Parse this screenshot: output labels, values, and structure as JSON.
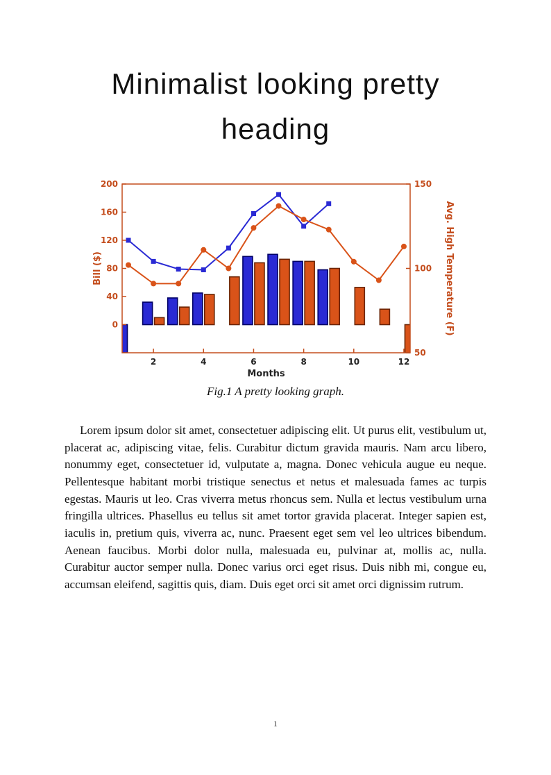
{
  "heading": {
    "title": "Minimalist looking pretty heading"
  },
  "figure": {
    "caption": "Fig.1 A pretty looking graph."
  },
  "body": {
    "paragraph": "Lorem ipsum dolor sit amet, consectetuer adipiscing elit. Ut purus elit, vestibulum ut, placerat ac, adipiscing vitae, felis. Curabitur dictum gravida mauris. Nam arcu libero, nonummy eget, consectetuer id, vulputate a, magna. Donec vehicula augue eu neque. Pellentesque habitant morbi tristique senectus et netus et malesuada fames ac turpis egestas. Mauris ut leo. Cras viverra metus rhoncus sem. Nulla et lectus vestibulum urna fringilla ultrices. Phasellus eu tellus sit amet tortor gravida placerat. Integer sapien est, iaculis in, pretium quis, viverra ac, nunc. Praesent eget sem vel leo ultrices bibendum. Aenean faucibus. Morbi dolor nulla, malesuada eu, pulvinar at, mollis ac, nulla. Curabitur auctor semper nulla. Donec varius orci eget risus. Duis nibh mi, congue eu, accumsan eleifend, sagittis quis, diam. Duis eget orci sit amet orci dignissim rutrum."
  },
  "page": {
    "number": "1"
  },
  "chart_data": {
    "type": "bar",
    "title": "",
    "xlabel": "Months",
    "x": [
      1,
      2,
      3,
      4,
      5,
      6,
      7,
      8,
      9,
      10,
      11,
      12
    ],
    "x_ticks": [
      2,
      4,
      6,
      8,
      10,
      12
    ],
    "xlim": [
      0.75,
      12.25
    ],
    "grid": false,
    "legend": "none",
    "left_axis": {
      "label": "Bill ($)",
      "lim": [
        -40,
        200
      ],
      "ticks": [
        0,
        40,
        80,
        120,
        160,
        200
      ],
      "color": "#c44d1d"
    },
    "right_axis": {
      "label": "Avg. High Temperature (F)",
      "lim": [
        50,
        150
      ],
      "ticks": [
        50,
        100,
        150
      ],
      "color": "#c44d1d"
    },
    "series": [
      {
        "name": "blue-bars",
        "type": "bar",
        "axis": "left",
        "color": "#2a2ad4",
        "edge": "#000066",
        "values": [
          -40,
          32,
          38,
          45,
          null,
          97,
          100,
          90,
          78,
          null,
          null,
          null
        ]
      },
      {
        "name": "orange-bars",
        "type": "bar",
        "axis": "left",
        "color": "#d95319",
        "edge": "#6b2504",
        "values": [
          null,
          10,
          25,
          43,
          68,
          88,
          93,
          90,
          80,
          53,
          22,
          -40
        ]
      },
      {
        "name": "blue-line",
        "type": "line",
        "axis": "left",
        "marker": "square",
        "color": "#2a2ad4",
        "x": [
          1,
          2,
          3,
          4,
          5,
          6,
          7,
          8,
          9
        ],
        "values": [
          120,
          90,
          79,
          78,
          109,
          158,
          185,
          140,
          172
        ]
      },
      {
        "name": "orange-line",
        "type": "line",
        "axis": "right",
        "marker": "circle",
        "color": "#d95319",
        "x": [
          1,
          2,
          3,
          4,
          5,
          6,
          7,
          8,
          9,
          10,
          11,
          12
        ],
        "values": [
          102,
          91,
          91,
          111,
          100,
          124,
          137,
          129,
          123,
          104,
          93,
          113
        ]
      }
    ]
  }
}
